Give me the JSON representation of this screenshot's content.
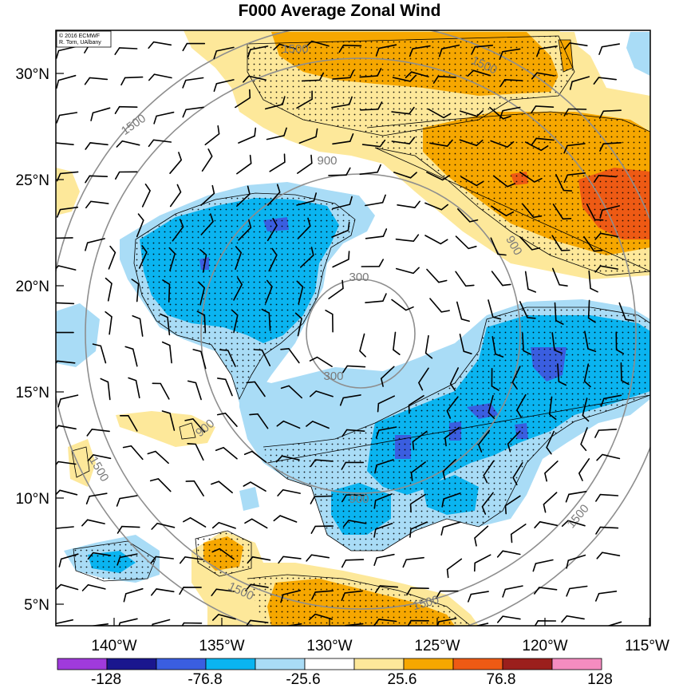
{
  "title": "F000 Average Zonal Wind",
  "credit": {
    "line1": "© 2016 ECMWF",
    "line2": "R. Torn, UAlbany"
  },
  "lat_labels": [
    "30°N",
    "25°N",
    "20°N",
    "15°N",
    "10°N",
    "5°N"
  ],
  "lon_labels": [
    "140°W",
    "135°W",
    "130°W",
    "125°W",
    "120°W",
    "115°W"
  ],
  "colorbar": {
    "tick_labels": [
      "-128",
      "-76.8",
      "-25.6",
      "25.6",
      "76.8",
      "128"
    ],
    "colors": [
      "#a03adc",
      "#1a168e",
      "#3a5ee0",
      "#0ab4f0",
      "#a9dcf6",
      "#ffffff",
      "#fde89a",
      "#f6a700",
      "#ee5a14",
      "#9b1f1c",
      "#f58cc0"
    ]
  },
  "range_rings": {
    "labels": [
      "300",
      "300",
      "900",
      "900",
      "900",
      "900",
      "1500",
      "1500",
      "1500",
      "1500",
      "1500",
      "1500",
      "1500"
    ]
  },
  "colors": {
    "ring": "#8e8e8e",
    "contour_line": "#000000",
    "positive_light": "#fde89a",
    "positive_mid": "#f6a700",
    "positive_strong": "#ee5a14",
    "negative_light": "#a9dcf6",
    "negative_mid": "#0ab4f0",
    "negative_strong": "#3a5ee0"
  }
}
